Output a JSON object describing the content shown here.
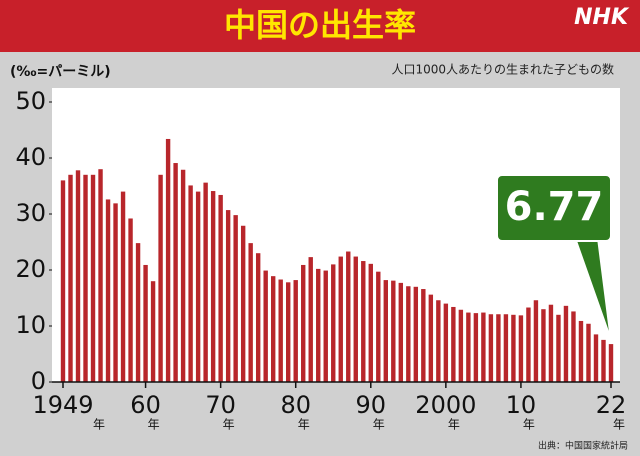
{
  "chart_data": {
    "type": "bar",
    "title": "中国の出生率",
    "brand": "NHK",
    "unit_label": "(‰=パーミル)",
    "note": "人口1000人あたりの生まれた子どもの数",
    "source": "出典：中国国家統計局",
    "x_unit": "年",
    "categories": [
      "1949",
      null,
      null,
      null,
      null,
      null,
      null,
      null,
      null,
      null,
      null,
      "60",
      null,
      null,
      null,
      null,
      null,
      null,
      null,
      null,
      null,
      "70",
      null,
      null,
      null,
      null,
      null,
      null,
      null,
      null,
      null,
      "80",
      null,
      null,
      null,
      null,
      null,
      null,
      null,
      null,
      null,
      "90",
      null,
      null,
      null,
      null,
      null,
      null,
      null,
      null,
      null,
      "2000",
      null,
      null,
      null,
      null,
      null,
      null,
      null,
      null,
      null,
      "10",
      null,
      null,
      null,
      null,
      null,
      null,
      null,
      null,
      null,
      null,
      null,
      "22"
    ],
    "values": [
      36.0,
      37.0,
      37.8,
      37.0,
      37.0,
      38.0,
      32.6,
      31.9,
      34.0,
      29.2,
      24.8,
      20.9,
      18.0,
      37.0,
      43.4,
      39.1,
      37.9,
      35.1,
      34.0,
      35.6,
      34.1,
      33.4,
      30.7,
      29.8,
      27.9,
      24.8,
      23.0,
      19.9,
      18.9,
      18.3,
      17.8,
      18.2,
      20.9,
      22.3,
      20.2,
      19.9,
      21.0,
      22.4,
      23.3,
      22.4,
      21.6,
      21.1,
      19.7,
      18.2,
      18.1,
      17.7,
      17.1,
      17.0,
      16.6,
      15.6,
      14.6,
      14.0,
      13.4,
      12.9,
      12.4,
      12.3,
      12.4,
      12.1,
      12.1,
      12.1,
      12.0,
      11.9,
      13.3,
      14.6,
      13.0,
      13.8,
      12.0,
      13.6,
      12.6,
      10.9,
      10.4,
      8.5,
      7.52,
      6.77
    ],
    "color": "#b8262b",
    "callout_color": "#2f7b1f",
    "ylim": [
      0,
      50
    ],
    "yticks": [
      0,
      10,
      20,
      30,
      40,
      50
    ]
  }
}
